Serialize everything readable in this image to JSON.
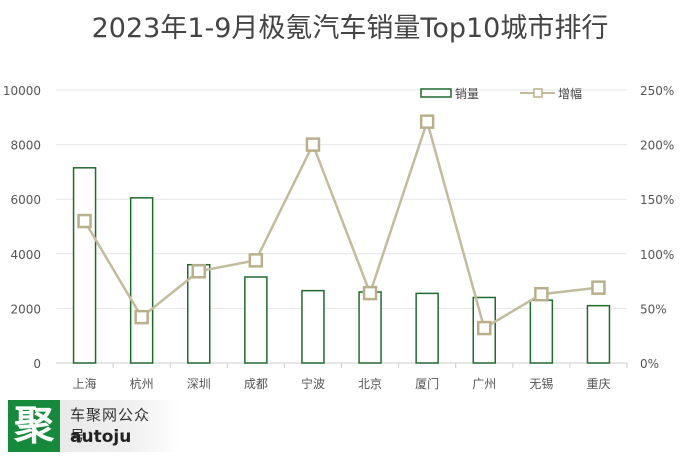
{
  "chart_data": {
    "type": "bar",
    "title": "2023年1-9月极氪汽车销量Top10城市排行",
    "categories": [
      "上海",
      "杭州",
      "深圳",
      "成都",
      "宁波",
      "北京",
      "厦门",
      "广州",
      "无锡",
      "重庆"
    ],
    "series": [
      {
        "name": "销量",
        "type": "bar",
        "axis": "left",
        "values": [
          7150,
          6050,
          3600,
          3150,
          2650,
          2600,
          2550,
          2400,
          2300,
          2100
        ]
      },
      {
        "name": "增幅",
        "type": "line",
        "axis": "right",
        "values": [
          130,
          42,
          84,
          94,
          200,
          64,
          221,
          32,
          63,
          69
        ]
      }
    ],
    "y_left": {
      "min": 0,
      "max": 10000,
      "ticks": [
        "0",
        "2000",
        "4000",
        "6000",
        "8000",
        "10000"
      ]
    },
    "y_right": {
      "min": 0,
      "max": 250,
      "ticks": [
        "0%",
        "50%",
        "100%",
        "150%",
        "200%",
        "250%"
      ]
    },
    "grid": true,
    "legend": "top-right",
    "colors": {
      "bar_stroke": "#1e6b2e",
      "line": "#c2bc9d",
      "marker": "#b8b08a",
      "grid": "#e6e6e6"
    }
  },
  "watermark": {
    "logo": "聚",
    "line1": "车聚网公众号：",
    "line2": "autoju"
  }
}
